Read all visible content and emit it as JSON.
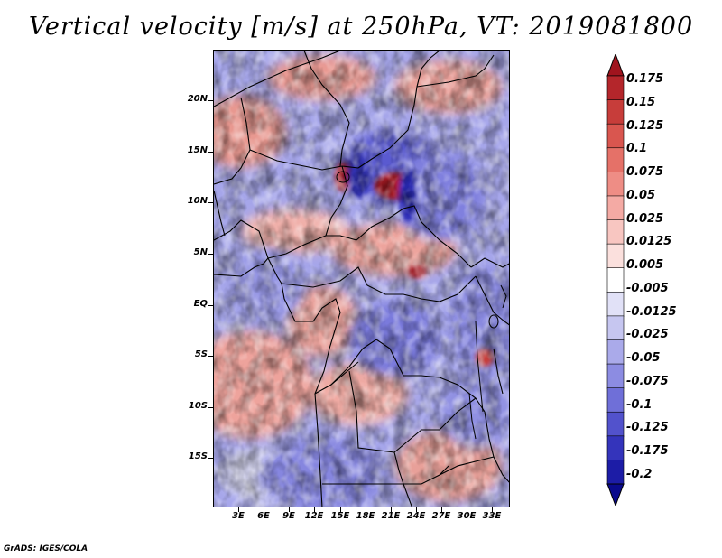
{
  "title": "Vertical velocity [m/s] at 250hPa, VT: 2019081800",
  "credit": "GrADS: IGES/COLA",
  "map": {
    "lat_labels": [
      "20N",
      "15N",
      "10N",
      "5N",
      "EQ",
      "5S",
      "10S",
      "15S"
    ],
    "lon_labels": [
      "3E",
      "6E",
      "9E",
      "12E",
      "15E",
      "18E",
      "21E",
      "24E",
      "27E",
      "30E",
      "33E"
    ]
  },
  "colorbar": {
    "labels": [
      "0.175",
      "0.15",
      "0.125",
      "0.1",
      "0.075",
      "0.05",
      "0.025",
      "0.0125",
      "0.005",
      "-0.005",
      "-0.0125",
      "-0.025",
      "-0.05",
      "-0.075",
      "-0.1",
      "-0.125",
      "-0.175",
      "-0.2"
    ],
    "colors": [
      "#a0141e",
      "#b4262b",
      "#c73d3a",
      "#d9564f",
      "#e57168",
      "#ee8d85",
      "#f4aaa4",
      "#f8c6c1",
      "#fbe0dd",
      "#ffffff",
      "#e1e1f7",
      "#c6c6f0",
      "#aaaaea",
      "#8c8ce2",
      "#6f6fd8",
      "#5252cc",
      "#3434bb",
      "#1c1ca6",
      "#0a0a8c"
    ]
  }
}
